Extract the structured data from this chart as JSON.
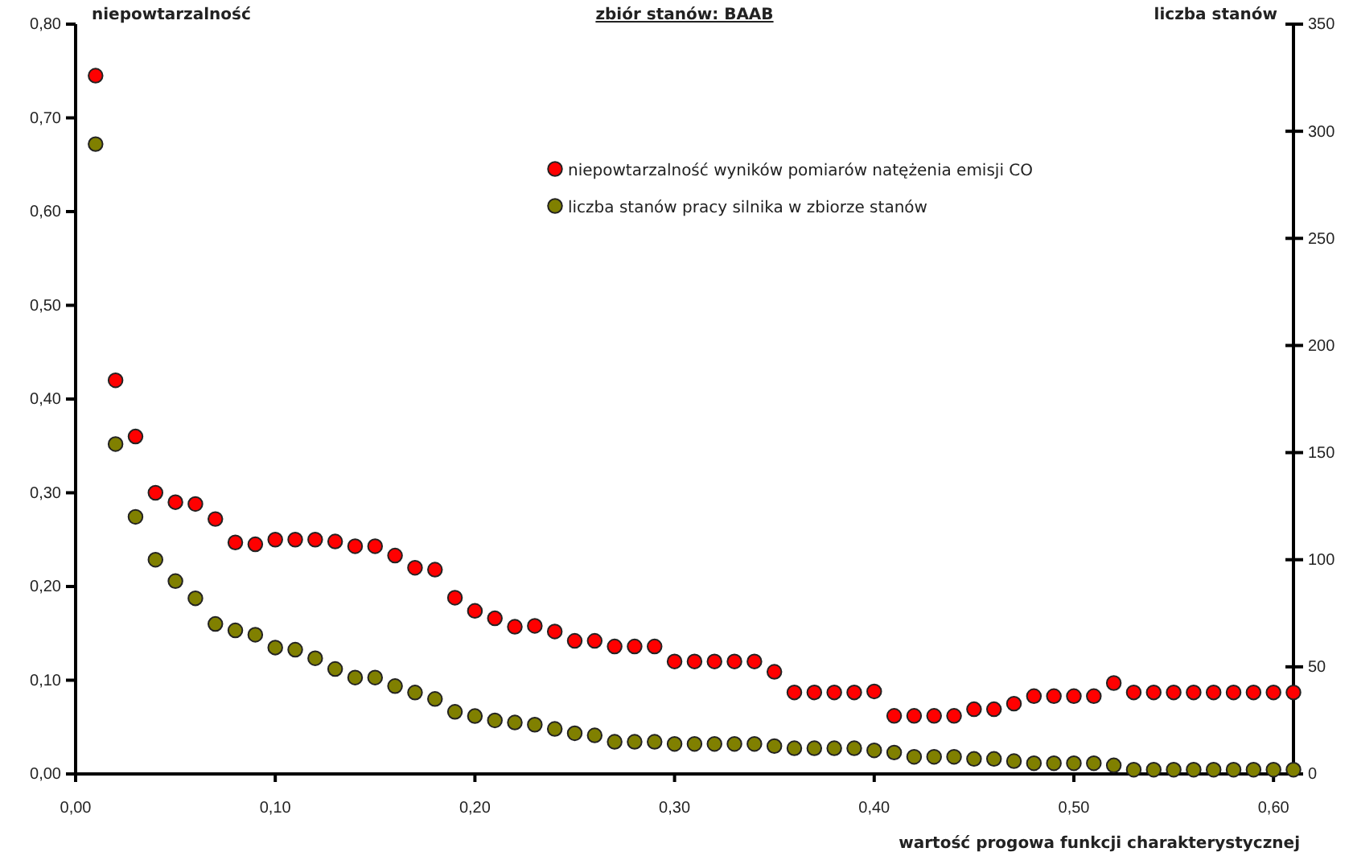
{
  "chart_data": {
    "type": "scatter",
    "title": "zbiór stanów: BAAB",
    "xlabel": "wartość progowa funkcji charakterystycznej",
    "ylabel": "niepowtarzalność",
    "y2label": "liczba stanów",
    "x": [
      0.01,
      0.02,
      0.03,
      0.04,
      0.05,
      0.06,
      0.07,
      0.08,
      0.09,
      0.1,
      0.11,
      0.12,
      0.13,
      0.14,
      0.15,
      0.16,
      0.17,
      0.18,
      0.19,
      0.2,
      0.21,
      0.22,
      0.23,
      0.24,
      0.25,
      0.26,
      0.27,
      0.28,
      0.29,
      0.3,
      0.31,
      0.32,
      0.33,
      0.34,
      0.35,
      0.36,
      0.37,
      0.38,
      0.39,
      0.4,
      0.41,
      0.42,
      0.43,
      0.44,
      0.45,
      0.46,
      0.47,
      0.48,
      0.49,
      0.5,
      0.51,
      0.52,
      0.53,
      0.54,
      0.55,
      0.56,
      0.57,
      0.58,
      0.59,
      0.6,
      0.61
    ],
    "series": [
      {
        "name": "niepowtarzalność wyników pomiarów natężenia emisji CO",
        "color": "#ff0000",
        "values": [
          0.745,
          0.42,
          0.36,
          0.3,
          0.29,
          0.288,
          0.272,
          0.247,
          0.245,
          0.25,
          0.25,
          0.25,
          0.248,
          0.243,
          0.243,
          0.233,
          0.22,
          0.218,
          0.188,
          0.174,
          0.166,
          0.157,
          0.158,
          0.152,
          0.142,
          0.142,
          0.136,
          0.136,
          0.136,
          0.12,
          0.12,
          0.12,
          0.12,
          0.12,
          0.109,
          0.087,
          0.087,
          0.087,
          0.087,
          0.088,
          0.062,
          0.062,
          0.062,
          0.062,
          0.069,
          0.069,
          0.075,
          0.083,
          0.083,
          0.083,
          0.083,
          0.097,
          0.087,
          0.087,
          0.087,
          0.087,
          0.087,
          0.087,
          0.087,
          0.087,
          0.087
        ]
      },
      {
        "name": "liczba stanów pracy silnika w zbiorze stanów",
        "color": "#808000",
        "axis": "y2",
        "values": [
          294,
          154,
          120,
          100,
          90,
          82,
          70,
          67,
          65,
          59,
          58,
          54,
          49,
          45,
          45,
          41,
          38,
          35,
          29,
          27,
          25,
          24,
          23,
          21,
          19,
          18,
          15,
          15,
          15,
          14,
          14,
          14,
          14,
          14,
          13,
          12,
          12,
          12,
          12,
          11,
          10,
          8,
          8,
          8,
          7,
          7,
          6,
          5,
          5,
          5,
          5,
          4,
          2,
          2,
          2,
          2,
          2,
          2,
          2,
          2,
          2
        ]
      }
    ],
    "xlim": [
      0,
      0.61
    ],
    "ylim": [
      0,
      0.8
    ],
    "y2lim": [
      0,
      350
    ],
    "xticks": [
      {
        "value": 0,
        "label": "0,00"
      },
      {
        "value": 0.1,
        "label": "0,10"
      },
      {
        "value": 0.2,
        "label": "0,20"
      },
      {
        "value": 0.3,
        "label": "0,30"
      },
      {
        "value": 0.4,
        "label": "0,40"
      },
      {
        "value": 0.5,
        "label": "0,50"
      },
      {
        "value": 0.6,
        "label": "0,60"
      }
    ],
    "yticks": [
      {
        "value": 0,
        "label": "0,00"
      },
      {
        "value": 0.1,
        "label": "0,10"
      },
      {
        "value": 0.2,
        "label": "0,20"
      },
      {
        "value": 0.3,
        "label": "0,30"
      },
      {
        "value": 0.4,
        "label": "0,40"
      },
      {
        "value": 0.5,
        "label": "0,50"
      },
      {
        "value": 0.6,
        "label": "0,60"
      },
      {
        "value": 0.7,
        "label": "0,70"
      },
      {
        "value": 0.8,
        "label": "0,80"
      }
    ],
    "y2ticks": [
      0,
      50,
      100,
      150,
      200,
      250,
      300,
      350
    ],
    "marker": "circle",
    "legend": "top",
    "grid": false
  }
}
